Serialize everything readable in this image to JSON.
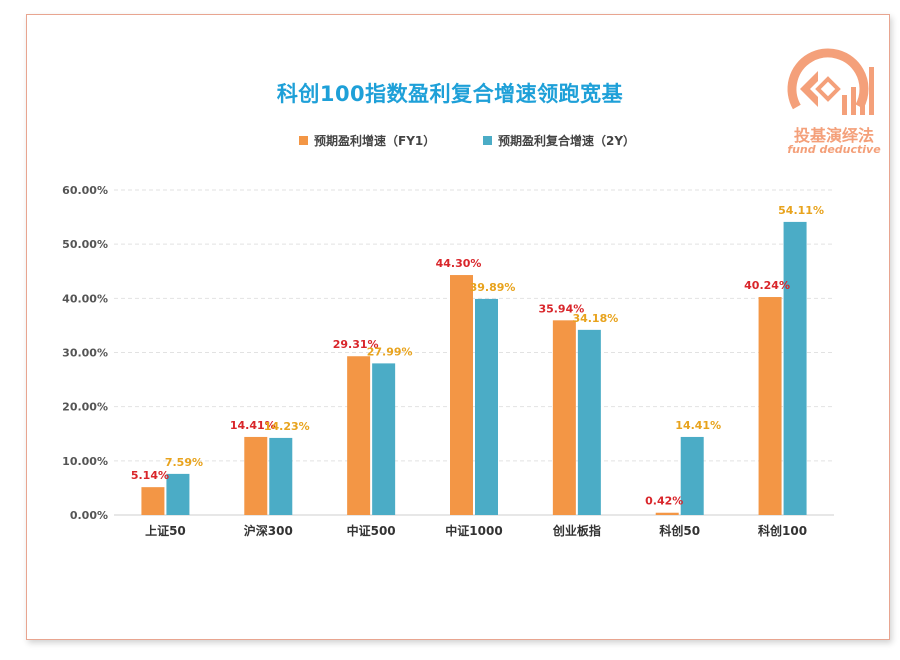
{
  "chart_data": {
    "type": "bar",
    "title": "科创100指数盈利复合增速领跑宽基",
    "categories": [
      "上证50",
      "沪深300",
      "中证500",
      "中证1000",
      "创业板指",
      "科创50",
      "科创100"
    ],
    "series": [
      {
        "name": "预期盈利增速（FY1）",
        "values": [
          5.14,
          14.41,
          29.31,
          44.3,
          35.94,
          0.42,
          40.24
        ],
        "labels": [
          "5.14%",
          "14.41%",
          "29.31%",
          "44.30%",
          "35.94%",
          "0.42%",
          "40.24%"
        ]
      },
      {
        "name": "预期盈利复合增速（2Y）",
        "values": [
          7.59,
          14.23,
          27.99,
          39.89,
          34.18,
          14.41,
          54.11
        ],
        "labels": [
          "7.59%",
          "14.23%",
          "27.99%",
          "39.89%",
          "34.18%",
          "14.41%",
          "54.11%"
        ]
      }
    ],
    "yticks": [
      "0.00%",
      "10.00%",
      "20.00%",
      "30.00%",
      "40.00%",
      "50.00%",
      "60.00%"
    ],
    "ylim": [
      0,
      60
    ],
    "grid": true,
    "legend_position": "top"
  },
  "colors": {
    "series_a": "#f39645",
    "series_b": "#4bacc6",
    "label_a": "#d9262b",
    "label_b": "#e8a31d",
    "title": "#1ea0d8"
  },
  "logo": {
    "text": "投基演绎法",
    "subtext": "fund deductive"
  }
}
